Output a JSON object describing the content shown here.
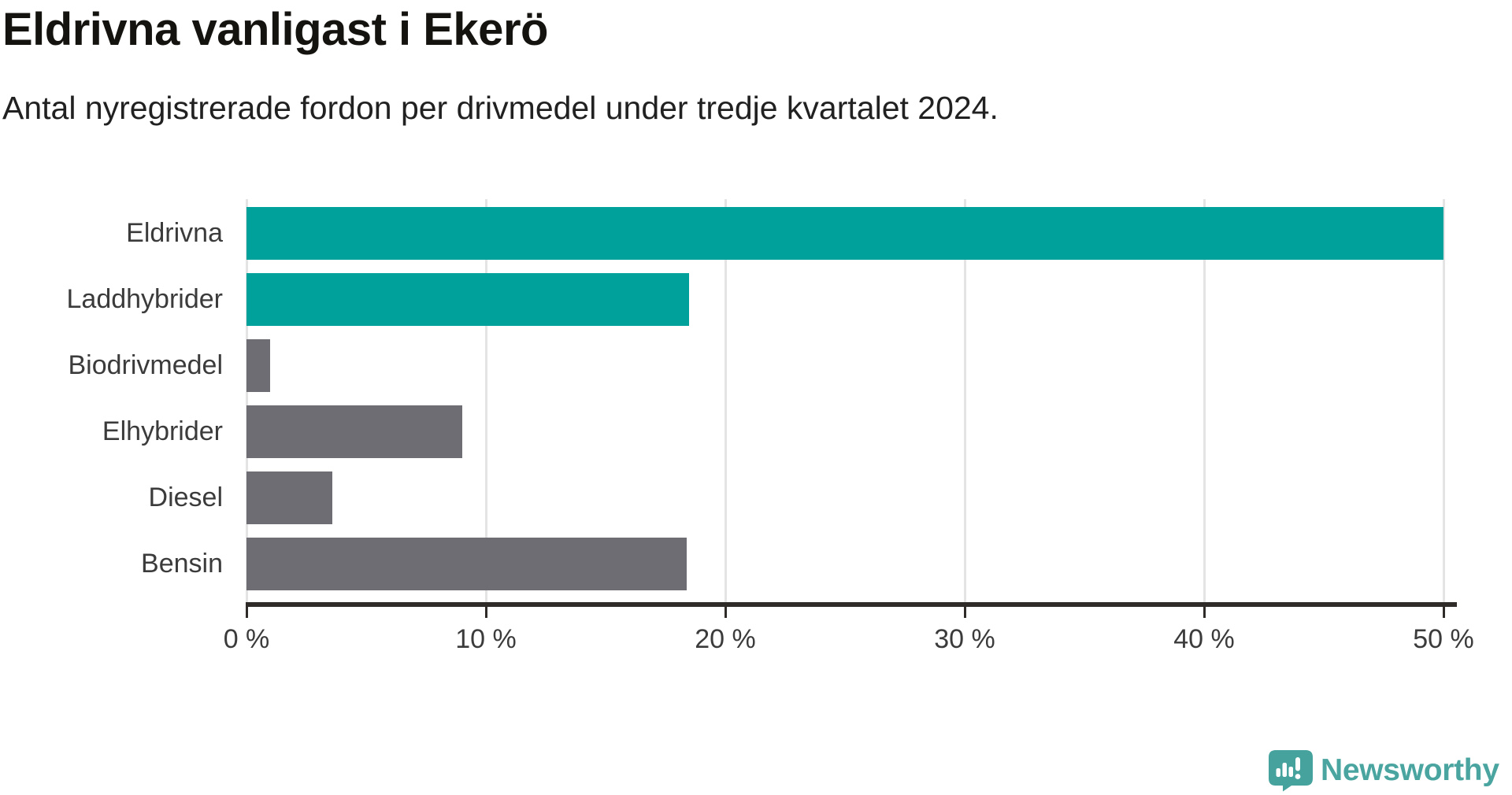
{
  "page": {
    "title": "Eldrivna vanligast i Ekerö",
    "subtitle": "Antal nyregistrerade fordon per drivmedel under tredje kvartalet 2024."
  },
  "chart_data": {
    "type": "bar",
    "orientation": "horizontal",
    "title": "Eldrivna vanligast i Ekerö",
    "subtitle": "Antal nyregistrerade fordon per drivmedel under tredje kvartalet 2024.",
    "categories": [
      "Eldrivna",
      "Laddhybrider",
      "Biodrivmedel",
      "Elhybrider",
      "Diesel",
      "Bensin"
    ],
    "values": [
      50.0,
      18.5,
      1.0,
      9.0,
      3.6,
      18.4
    ],
    "unit": "%",
    "highlight": [
      true,
      true,
      false,
      false,
      false,
      false
    ],
    "colors": {
      "highlight": "#00a19a",
      "default": "#6e6d73"
    },
    "xlabel": "",
    "ylabel": "",
    "xlim": [
      0,
      50
    ],
    "xticks": [
      0,
      10,
      20,
      30,
      40,
      50
    ],
    "xtick_labels": [
      "0 %",
      "10 %",
      "20 %",
      "30 %",
      "40 %",
      "50 %"
    ],
    "grid": true,
    "legend": null
  },
  "branding": {
    "logo_text": "Newsworthy",
    "logo_icon": "newsworthy-chart-bubble-icon",
    "icon_color": "#45a29d",
    "text_color": "#4aa5a0"
  }
}
